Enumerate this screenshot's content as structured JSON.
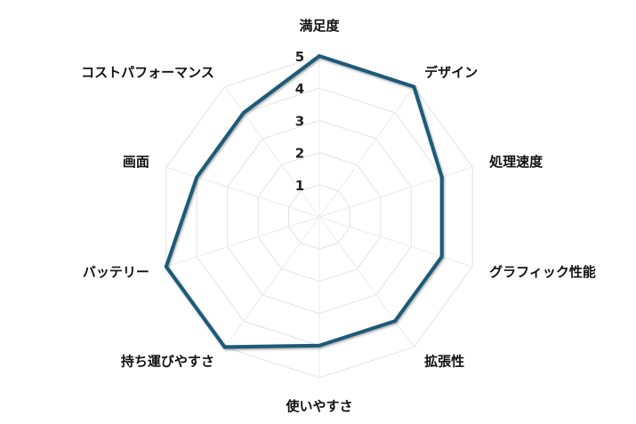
{
  "chart_data": {
    "type": "radar",
    "categories": [
      "満足度",
      "デザイン",
      "処理速度",
      "グラフィック性能",
      "拡張性",
      "使いやすさ",
      "持ち運びやすさ",
      "バッテリー",
      "画面",
      "コストパフォーマンス"
    ],
    "series": [
      {
        "values": [
          5,
          5,
          4,
          4,
          4,
          4,
          5,
          5,
          4,
          4
        ],
        "color": "#1d5a78"
      }
    ],
    "rlim": [
      0,
      5
    ],
    "ticks": [
      "1",
      "2",
      "3",
      "4",
      "5"
    ],
    "grid": true,
    "legend": "none"
  }
}
